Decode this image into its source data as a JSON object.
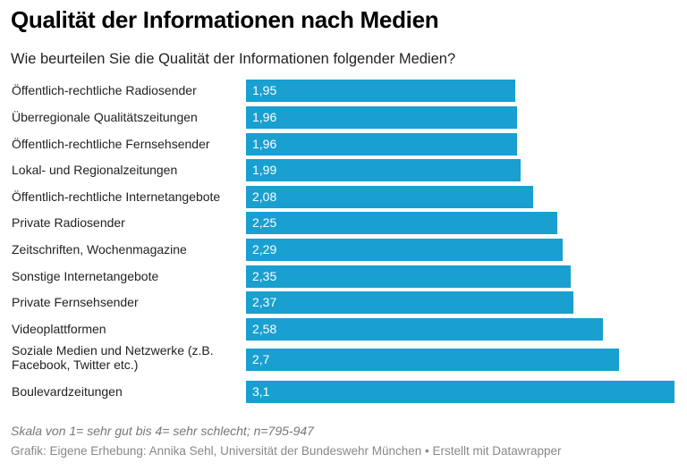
{
  "header": {
    "title": "Qualität der Informationen nach Medien",
    "subtitle": "Wie beurteilen Sie die Qualität der Informationen folgender Medien?"
  },
  "footer": {
    "note": "Skala von 1= sehr gut bis 4= sehr schlecht; n=795-947",
    "source": "Grafik: Eigene Erhebung: Annika Sehl, Universität der Bundeswehr München • Erstellt mit Datawrapper"
  },
  "colors": {
    "bar": "#199fd0"
  },
  "chart_data": {
    "type": "bar",
    "orientation": "horizontal",
    "title": "Qualität der Informationen nach Medien",
    "subtitle": "Wie beurteilen Sie die Qualität der Informationen folgender Medien?",
    "xlabel": "",
    "ylabel": "",
    "xlim": [
      0,
      3.1
    ],
    "grid": false,
    "categories": [
      "Öffentlich-rechtliche Radiosender",
      "Überregionale Qualitätszeitungen",
      "Öffentlich-rechtliche Fernsehsender",
      "Lokal- und Regionalzeitungen",
      "Öffentlich-rechtliche Internetangebote",
      "Private Radiosender",
      "Zeitschriften, Wochenmagazine",
      "Sonstige Internetangebote",
      "Private Fernsehsender",
      "Videoplattformen",
      "Soziale Medien und Netzwerke (z.B. Facebook, Twitter etc.)",
      "Boulevardzeitungen"
    ],
    "values": [
      1.95,
      1.96,
      1.96,
      1.99,
      2.08,
      2.25,
      2.29,
      2.35,
      2.37,
      2.58,
      2.7,
      3.1
    ],
    "value_labels": [
      "1,95",
      "1,96",
      "1,96",
      "1,99",
      "2,08",
      "2,25",
      "2,29",
      "2,35",
      "2,37",
      "2,58",
      "2,7",
      "3,1"
    ]
  }
}
